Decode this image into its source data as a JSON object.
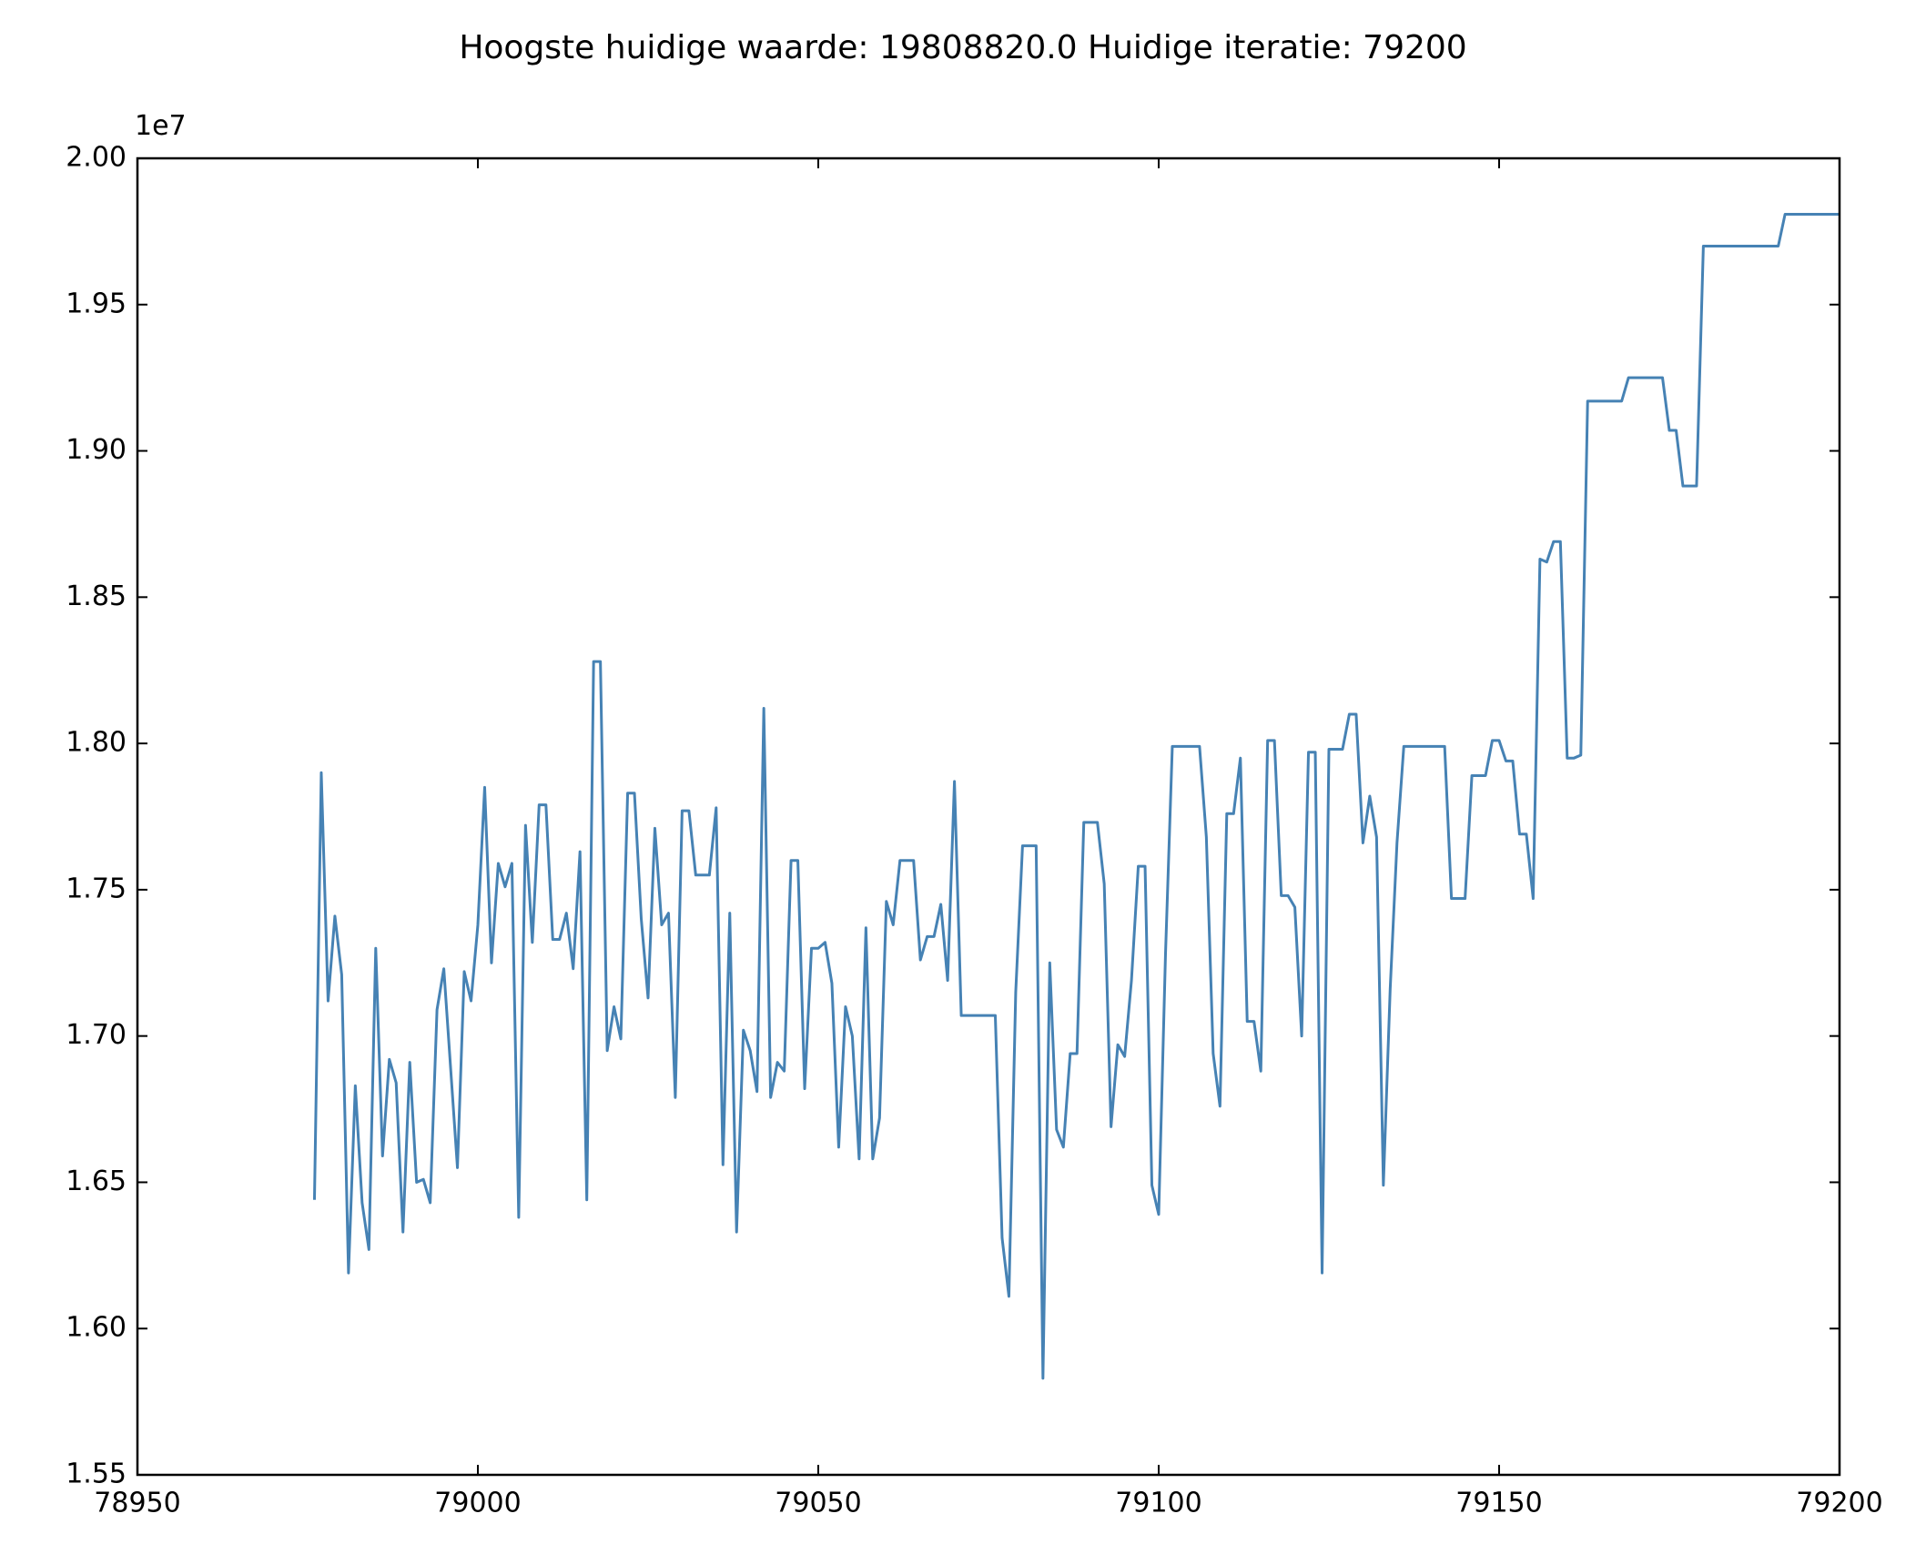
{
  "chart_data": {
    "type": "line",
    "title": "Hoogste huidige waarde: 19808820.0 Huidige iteratie: 79200",
    "y_offset_label": "1e7",
    "x": [
      78976,
      78977,
      78978,
      78979,
      78980,
      78981,
      78982,
      78983,
      78984,
      78985,
      78986,
      78987,
      78988,
      78989,
      78990,
      78991,
      78992,
      78993,
      78994,
      78995,
      78996,
      78997,
      78998,
      78999,
      79000,
      79001,
      79002,
      79003,
      79004,
      79005,
      79006,
      79007,
      79008,
      79009,
      79010,
      79011,
      79012,
      79013,
      79014,
      79015,
      79016,
      79017,
      79018,
      79019,
      79020,
      79021,
      79022,
      79023,
      79024,
      79025,
      79026,
      79027,
      79028,
      79029,
      79030,
      79031,
      79032,
      79033,
      79034,
      79035,
      79036,
      79037,
      79038,
      79039,
      79040,
      79041,
      79042,
      79043,
      79044,
      79045,
      79046,
      79047,
      79048,
      79049,
      79050,
      79051,
      79052,
      79053,
      79054,
      79055,
      79056,
      79057,
      79058,
      79059,
      79060,
      79061,
      79062,
      79063,
      79064,
      79065,
      79066,
      79067,
      79068,
      79069,
      79070,
      79071,
      79076,
      79077,
      79078,
      79079,
      79080,
      79081,
      79082,
      79083,
      79084,
      79085,
      79086,
      79087,
      79088,
      79089,
      79090,
      79091,
      79092,
      79093,
      79094,
      79095,
      79096,
      79097,
      79098,
      79099,
      79100,
      79101,
      79102,
      79106,
      79107,
      79108,
      79109,
      79110,
      79111,
      79112,
      79113,
      79114,
      79115,
      79116,
      79117,
      79118,
      79119,
      79120,
      79121,
      79122,
      79123,
      79124,
      79125,
      79127,
      79128,
      79129,
      79130,
      79131,
      79132,
      79133,
      79134,
      79135,
      79136,
      79142,
      79143,
      79145,
      79146,
      79148,
      79149,
      79150,
      79151,
      79152,
      79153,
      79154,
      79155,
      79156,
      79157,
      79158,
      79159,
      79160,
      79161,
      79162,
      79163,
      79168,
      79169,
      79174,
      79175,
      79176,
      79177,
      79179,
      79180,
      79191,
      79192,
      79200
    ],
    "series": [
      {
        "color": "#4682b4",
        "values": [
          1.644,
          1.79,
          1.712,
          1.741,
          1.721,
          1.619,
          1.683,
          1.643,
          1.627,
          1.73,
          1.659,
          1.692,
          1.684,
          1.633,
          1.691,
          1.65,
          1.651,
          1.643,
          1.709,
          1.723,
          1.689,
          1.655,
          1.722,
          1.712,
          1.738,
          1.785,
          1.725,
          1.759,
          1.751,
          1.759,
          1.638,
          1.772,
          1.732,
          1.779,
          1.779,
          1.733,
          1.733,
          1.742,
          1.723,
          1.763,
          1.644,
          1.828,
          1.828,
          1.695,
          1.71,
          1.699,
          1.783,
          1.783,
          1.74,
          1.713,
          1.771,
          1.738,
          1.742,
          1.679,
          1.777,
          1.777,
          1.755,
          1.755,
          1.755,
          1.778,
          1.656,
          1.742,
          1.633,
          1.702,
          1.695,
          1.681,
          1.812,
          1.679,
          1.691,
          1.688,
          1.76,
          1.76,
          1.682,
          1.73,
          1.73,
          1.732,
          1.718,
          1.662,
          1.71,
          1.7,
          1.658,
          1.737,
          1.658,
          1.672,
          1.746,
          1.738,
          1.76,
          1.76,
          1.76,
          1.726,
          1.734,
          1.734,
          1.745,
          1.719,
          1.787,
          1.707,
          1.707,
          1.631,
          1.611,
          1.715,
          1.765,
          1.765,
          1.765,
          1.583,
          1.725,
          1.668,
          1.662,
          1.694,
          1.694,
          1.773,
          1.773,
          1.773,
          1.752,
          1.669,
          1.697,
          1.693,
          1.719,
          1.758,
          1.758,
          1.649,
          1.639,
          1.728,
          1.799,
          1.799,
          1.768,
          1.694,
          1.676,
          1.776,
          1.776,
          1.795,
          1.705,
          1.705,
          1.688,
          1.801,
          1.801,
          1.748,
          1.748,
          1.744,
          1.7,
          1.797,
          1.797,
          1.619,
          1.798,
          1.798,
          1.81,
          1.81,
          1.766,
          1.782,
          1.768,
          1.649,
          1.716,
          1.766,
          1.799,
          1.799,
          1.747,
          1.747,
          1.789,
          1.789,
          1.801,
          1.801,
          1.794,
          1.794,
          1.769,
          1.769,
          1.747,
          1.863,
          1.862,
          1.869,
          1.869,
          1.795,
          1.795,
          1.796,
          1.917,
          1.917,
          1.925,
          1.925,
          1.907,
          1.907,
          1.888,
          1.888,
          1.97,
          1.97,
          1.98088,
          1.98088
        ]
      }
    ],
    "xlim": [
      78950,
      79200
    ],
    "xticks": [
      78950,
      79000,
      79050,
      79100,
      79150,
      79200
    ],
    "ylim": [
      1.55,
      2.0
    ],
    "yticks": [
      1.55,
      {
        "value": 1.6,
        "label": "1.60"
      },
      1.65,
      {
        "value": 1.7,
        "label": "1.70"
      },
      1.75,
      {
        "value": 1.8,
        "label": "1.80"
      },
      1.85,
      {
        "value": 1.9,
        "label": "1.90"
      },
      1.95,
      {
        "value": 2.0,
        "label": "2.00"
      }
    ],
    "grid": false
  }
}
